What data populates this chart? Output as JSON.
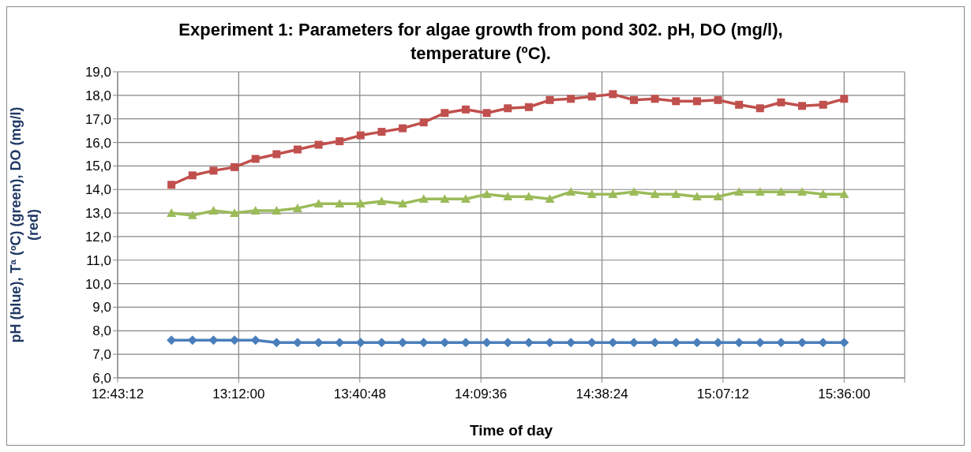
{
  "chart_data": {
    "type": "line",
    "title": "Experiment 1: Parameters for algae growth from pond 302. pH, DO (mg/l), temperature (ºC).",
    "xlabel": "Time of day",
    "ylabel": "pH (blue), Tª (ºC) (green), DO (mg/l) (red)",
    "x": [
      12.9333,
      13.0167,
      13.1,
      13.1833,
      13.2667,
      13.35,
      13.4333,
      13.5167,
      13.6,
      13.6833,
      13.7667,
      13.85,
      13.9333,
      14.0167,
      14.1,
      14.1833,
      14.2667,
      14.35,
      14.4333,
      14.5167,
      14.6,
      14.6833,
      14.7667,
      14.85,
      14.9333,
      15.0167,
      15.1,
      15.1833,
      15.2667,
      15.35,
      15.4333,
      15.5167,
      15.6
    ],
    "series": [
      {
        "color": "#4a7ebb",
        "marker": "diamond",
        "values": [
          7.6,
          7.6,
          7.6,
          7.6,
          7.6,
          7.5,
          7.5,
          7.5,
          7.5,
          7.5,
          7.5,
          7.5,
          7.5,
          7.5,
          7.5,
          7.5,
          7.5,
          7.5,
          7.5,
          7.5,
          7.5,
          7.5,
          7.5,
          7.5,
          7.5,
          7.5,
          7.5,
          7.5,
          7.5,
          7.5,
          7.5,
          7.5,
          7.5
        ]
      },
      {
        "color": "#9bbb59",
        "marker": "triangle",
        "values": [
          13.0,
          12.9,
          13.1,
          13.0,
          13.1,
          13.1,
          13.2,
          13.4,
          13.4,
          13.4,
          13.5,
          13.4,
          13.6,
          13.6,
          13.6,
          13.8,
          13.7,
          13.7,
          13.6,
          13.9,
          13.8,
          13.8,
          13.9,
          13.8,
          13.8,
          13.7,
          13.7,
          13.9,
          13.9,
          13.9,
          13.9,
          13.8,
          13.8
        ]
      },
      {
        "color": "#c0504d",
        "marker": "square",
        "values": [
          14.2,
          14.6,
          14.8,
          14.95,
          15.3,
          15.5,
          15.7,
          15.9,
          16.05,
          16.3,
          16.45,
          16.6,
          16.85,
          17.25,
          17.4,
          17.25,
          17.45,
          17.5,
          17.8,
          17.85,
          17.95,
          18.05,
          17.8,
          17.85,
          17.75,
          17.75,
          17.8,
          17.6,
          17.45,
          17.7,
          17.55,
          17.6,
          17.85
        ]
      }
    ],
    "xlim": [
      12.72,
      15.84
    ],
    "xticks": [
      {
        "value": 12.72,
        "label": "12:43:12"
      },
      {
        "value": 13.2,
        "label": "13:12:00"
      },
      {
        "value": 13.68,
        "label": "13:40:48"
      },
      {
        "value": 14.16,
        "label": "14:09:36"
      },
      {
        "value": 14.64,
        "label": "14:38:24"
      },
      {
        "value": 15.12,
        "label": "15:07:12"
      },
      {
        "value": 15.6,
        "label": "15:36:00"
      },
      {
        "value": 15.84,
        "label": null
      }
    ],
    "ylim": [
      6,
      19
    ],
    "yticks": [
      {
        "value": 6,
        "label": "6,0"
      },
      {
        "value": 7,
        "label": "7,0"
      },
      {
        "value": 8,
        "label": "8,0"
      },
      {
        "value": 9,
        "label": "9,0"
      },
      {
        "value": 10,
        "label": "10,0"
      },
      {
        "value": 11,
        "label": "11,0"
      },
      {
        "value": 12,
        "label": "12,0"
      },
      {
        "value": 13,
        "label": "13,0"
      },
      {
        "value": 14,
        "label": "14,0"
      },
      {
        "value": 15,
        "label": "15,0"
      },
      {
        "value": 16,
        "label": "16,0"
      },
      {
        "value": 17,
        "label": "17,0"
      },
      {
        "value": 18,
        "label": "18,0"
      },
      {
        "value": 19,
        "label": "19,0"
      }
    ],
    "grid": true,
    "legend": false,
    "line_style": "solid"
  }
}
